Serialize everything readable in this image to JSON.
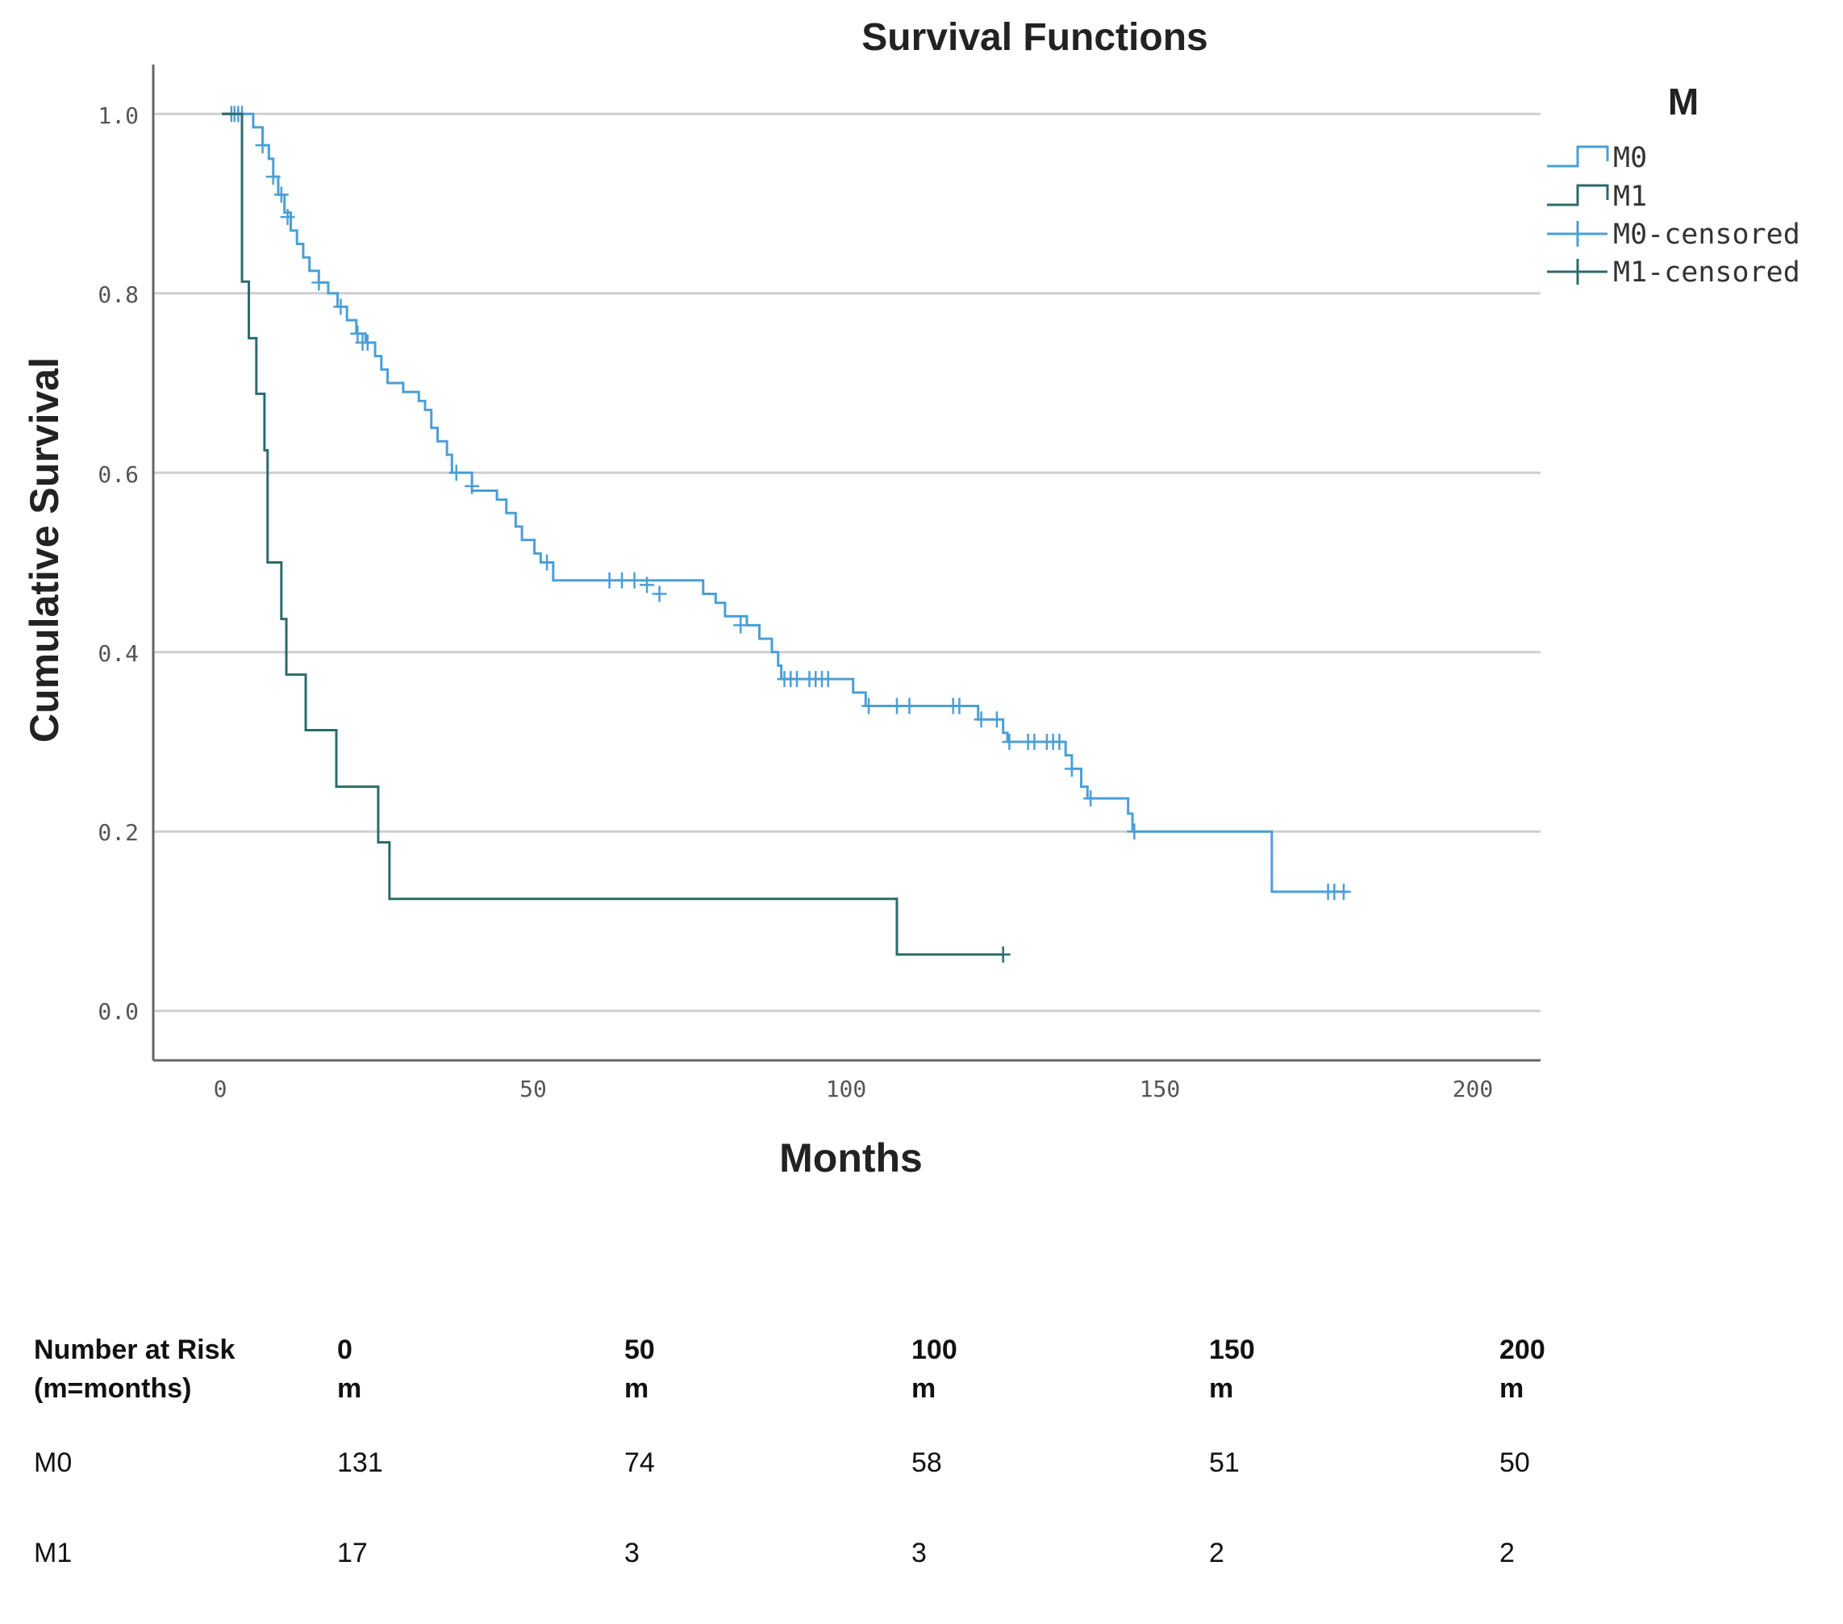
{
  "chart_data": {
    "type": "line",
    "title": "Survival Functions",
    "xlabel": "Months",
    "ylabel": "Cumulative Survival",
    "xlim": [
      -11,
      211
    ],
    "ylim": [
      -0.055,
      1.055
    ],
    "xticks": [
      "0",
      "50",
      "100",
      "150",
      "200"
    ],
    "yticks": [
      "0.0",
      "0.2",
      "0.4",
      "0.6",
      "0.8",
      "1.0"
    ],
    "grid": "horizontal",
    "legend": {
      "title": "M",
      "position": "top-right",
      "items": [
        "M0",
        "M1",
        "M0-censored",
        "M1-censored"
      ]
    },
    "series": [
      {
        "name": "M0",
        "color": "#4a9fd6",
        "steps": [
          [
            0,
            1.0
          ],
          [
            5,
            0.985
          ],
          [
            6.5,
            0.965
          ],
          [
            7.5,
            0.95
          ],
          [
            8.2,
            0.93
          ],
          [
            9,
            0.91
          ],
          [
            10,
            0.89
          ],
          [
            11,
            0.87
          ],
          [
            12,
            0.855
          ],
          [
            13,
            0.84
          ],
          [
            14,
            0.825
          ],
          [
            15.5,
            0.812
          ],
          [
            17,
            0.8
          ],
          [
            18.5,
            0.785
          ],
          [
            20,
            0.77
          ],
          [
            21.5,
            0.755
          ],
          [
            23,
            0.745
          ],
          [
            24.5,
            0.73
          ],
          [
            25.5,
            0.715
          ],
          [
            26.5,
            0.7
          ],
          [
            29,
            0.69
          ],
          [
            31.5,
            0.68
          ],
          [
            32.5,
            0.67
          ],
          [
            33.5,
            0.65
          ],
          [
            34.5,
            0.635
          ],
          [
            36,
            0.62
          ],
          [
            36.8,
            0.6
          ],
          [
            40,
            0.58
          ],
          [
            44,
            0.57
          ],
          [
            45.5,
            0.555
          ],
          [
            47,
            0.54
          ],
          [
            48,
            0.525
          ],
          [
            50,
            0.51
          ],
          [
            51,
            0.5
          ],
          [
            53,
            0.48
          ],
          [
            77,
            0.465
          ],
          [
            79,
            0.455
          ],
          [
            80.5,
            0.44
          ],
          [
            84,
            0.43
          ],
          [
            86,
            0.415
          ],
          [
            88,
            0.4
          ],
          [
            89,
            0.385
          ],
          [
            89.5,
            0.37
          ],
          [
            101,
            0.355
          ],
          [
            103,
            0.34
          ],
          [
            121,
            0.325
          ],
          [
            125,
            0.31
          ],
          [
            125.7,
            0.3
          ],
          [
            135,
            0.285
          ],
          [
            136,
            0.27
          ],
          [
            137.5,
            0.25
          ],
          [
            138.5,
            0.237
          ],
          [
            145,
            0.22
          ],
          [
            145.7,
            0.2
          ],
          [
            168,
            0.133
          ]
        ],
        "end_x": 180,
        "censored": [
          [
            1.5,
            1.0
          ],
          [
            2,
            1.0
          ],
          [
            2.6,
            1.0
          ],
          [
            3.2,
            1.0
          ],
          [
            6.5,
            0.965
          ],
          [
            8.2,
            0.93
          ],
          [
            9.5,
            0.91
          ],
          [
            10.5,
            0.885
          ],
          [
            15.5,
            0.812
          ],
          [
            19,
            0.785
          ],
          [
            21.7,
            0.755
          ],
          [
            22.5,
            0.745
          ],
          [
            23.3,
            0.745
          ],
          [
            37.5,
            0.6
          ],
          [
            40,
            0.585
          ],
          [
            52,
            0.5
          ],
          [
            62,
            0.48
          ],
          [
            64,
            0.48
          ],
          [
            66,
            0.48
          ],
          [
            68,
            0.475
          ],
          [
            70,
            0.465
          ],
          [
            83,
            0.43
          ],
          [
            90,
            0.37
          ],
          [
            91,
            0.37
          ],
          [
            92,
            0.37
          ],
          [
            94,
            0.37
          ],
          [
            95,
            0.37
          ],
          [
            96,
            0.37
          ],
          [
            97,
            0.37
          ],
          [
            103.5,
            0.34
          ],
          [
            108,
            0.34
          ],
          [
            110,
            0.34
          ],
          [
            117,
            0.34
          ],
          [
            118,
            0.34
          ],
          [
            121.5,
            0.325
          ],
          [
            124,
            0.325
          ],
          [
            126,
            0.3
          ],
          [
            129,
            0.3
          ],
          [
            130,
            0.3
          ],
          [
            132,
            0.3
          ],
          [
            133,
            0.3
          ],
          [
            134,
            0.3
          ],
          [
            136,
            0.27
          ],
          [
            139,
            0.237
          ],
          [
            146,
            0.2
          ],
          [
            177,
            0.133
          ],
          [
            178,
            0.133
          ],
          [
            179.5,
            0.133
          ]
        ]
      },
      {
        "name": "M1",
        "color": "#2c6b6b",
        "steps": [
          [
            0,
            1.0
          ],
          [
            3.2,
            0.813
          ],
          [
            4.3,
            0.75
          ],
          [
            5.5,
            0.688
          ],
          [
            6.8,
            0.625
          ],
          [
            7.3,
            0.5
          ],
          [
            9.5,
            0.437
          ],
          [
            10.3,
            0.375
          ],
          [
            13.4,
            0.313
          ],
          [
            18.3,
            0.25
          ],
          [
            25,
            0.188
          ],
          [
            26.8,
            0.125
          ],
          [
            108,
            0.063
          ]
        ],
        "end_x": 125,
        "censored": [
          [
            125,
            0.063
          ]
        ]
      }
    ]
  },
  "risk_table": {
    "header": [
      [
        "Number at Risk",
        "(m=months)"
      ],
      [
        "0",
        "m"
      ],
      [
        "50",
        "m"
      ],
      [
        "100",
        "m"
      ],
      [
        "150",
        "m"
      ],
      [
        "200",
        "m"
      ]
    ],
    "rows": [
      {
        "label": "M0",
        "values": [
          "131",
          "74",
          "58",
          "51",
          "50"
        ]
      },
      {
        "label": "M1",
        "values": [
          "17",
          "3",
          "3",
          "2",
          "2"
        ]
      }
    ]
  }
}
